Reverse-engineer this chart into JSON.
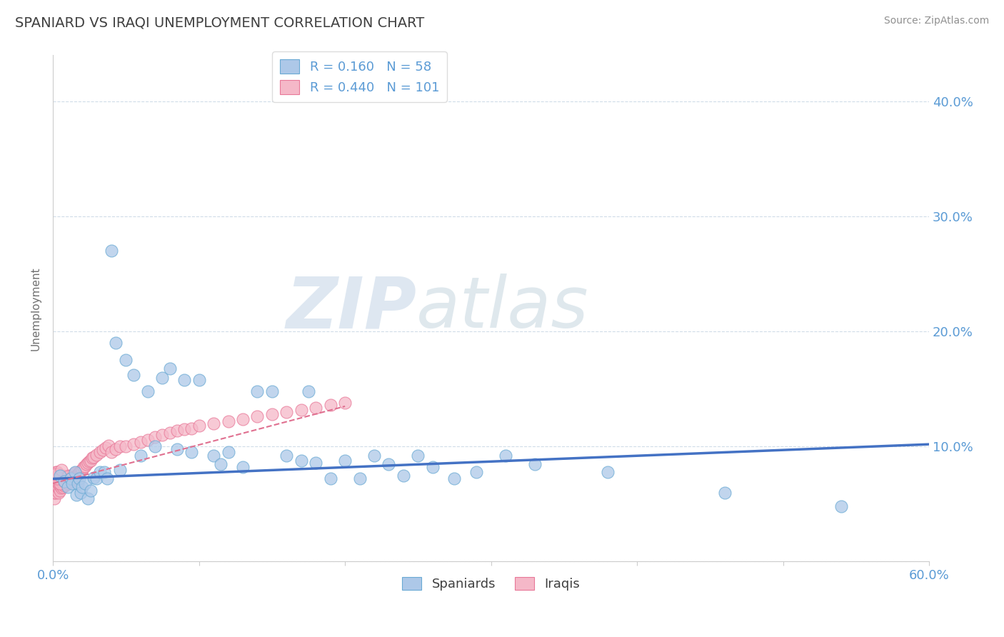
{
  "title": "SPANIARD VS IRAQI UNEMPLOYMENT CORRELATION CHART",
  "source_text": "Source: ZipAtlas.com",
  "ylabel": "Unemployment",
  "watermark_zip": "ZIP",
  "watermark_atlas": "atlas",
  "xlim": [
    0.0,
    0.6
  ],
  "ylim": [
    0.0,
    0.44
  ],
  "xtick_vals": [
    0.0,
    0.1,
    0.2,
    0.3,
    0.4,
    0.5,
    0.6
  ],
  "xtick_labels": [
    "0.0%",
    "",
    "",
    "",
    "",
    "",
    "60.0%"
  ],
  "ytick_vals": [
    0.0,
    0.1,
    0.2,
    0.3,
    0.4
  ],
  "ytick_labels": [
    "",
    "10.0%",
    "20.0%",
    "30.0%",
    "40.0%"
  ],
  "legend_blue_r": "0.160",
  "legend_blue_n": "58",
  "legend_pink_r": "0.440",
  "legend_pink_n": "101",
  "legend_labels": [
    "Spaniards",
    "Iraqis"
  ],
  "blue_scatter_face": "#adc8e8",
  "blue_scatter_edge": "#6aaad4",
  "pink_scatter_face": "#f5b8c8",
  "pink_scatter_edge": "#e87898",
  "blue_line_color": "#4472c4",
  "pink_line_color": "#e07090",
  "title_color": "#404040",
  "axis_label_color": "#5b9bd5",
  "grid_color": "#d0dce8",
  "background_color": "#ffffff",
  "spaniards_x": [
    0.005,
    0.008,
    0.01,
    0.012,
    0.013,
    0.015,
    0.016,
    0.017,
    0.018,
    0.019,
    0.02,
    0.022,
    0.024,
    0.026,
    0.028,
    0.03,
    0.032,
    0.035,
    0.037,
    0.04,
    0.043,
    0.046,
    0.05,
    0.055,
    0.06,
    0.065,
    0.07,
    0.075,
    0.08,
    0.085,
    0.09,
    0.095,
    0.1,
    0.11,
    0.115,
    0.12,
    0.13,
    0.14,
    0.15,
    0.16,
    0.17,
    0.175,
    0.18,
    0.19,
    0.2,
    0.21,
    0.22,
    0.23,
    0.24,
    0.25,
    0.26,
    0.275,
    0.29,
    0.31,
    0.33,
    0.38,
    0.46,
    0.54
  ],
  "spaniards_y": [
    0.075,
    0.07,
    0.065,
    0.072,
    0.068,
    0.078,
    0.058,
    0.068,
    0.072,
    0.06,
    0.065,
    0.068,
    0.055,
    0.062,
    0.073,
    0.072,
    0.078,
    0.078,
    0.072,
    0.27,
    0.19,
    0.08,
    0.175,
    0.162,
    0.092,
    0.148,
    0.1,
    0.16,
    0.168,
    0.098,
    0.158,
    0.095,
    0.158,
    0.092,
    0.085,
    0.095,
    0.082,
    0.148,
    0.148,
    0.092,
    0.088,
    0.148,
    0.086,
    0.072,
    0.088,
    0.072,
    0.092,
    0.085,
    0.075,
    0.092,
    0.082,
    0.072,
    0.078,
    0.092,
    0.085,
    0.078,
    0.06,
    0.048
  ],
  "iraqis_x": [
    0.001,
    0.001,
    0.001,
    0.001,
    0.001,
    0.002,
    0.002,
    0.002,
    0.002,
    0.002,
    0.002,
    0.003,
    0.003,
    0.003,
    0.003,
    0.003,
    0.004,
    0.004,
    0.004,
    0.004,
    0.004,
    0.005,
    0.005,
    0.005,
    0.005,
    0.006,
    0.006,
    0.006,
    0.006,
    0.007,
    0.007,
    0.007,
    0.007,
    0.008,
    0.008,
    0.008,
    0.009,
    0.009,
    0.009,
    0.01,
    0.01,
    0.01,
    0.011,
    0.011,
    0.012,
    0.012,
    0.013,
    0.013,
    0.014,
    0.014,
    0.015,
    0.015,
    0.016,
    0.017,
    0.018,
    0.019,
    0.02,
    0.021,
    0.022,
    0.023,
    0.024,
    0.025,
    0.026,
    0.027,
    0.028,
    0.03,
    0.032,
    0.034,
    0.036,
    0.038,
    0.04,
    0.043,
    0.046,
    0.05,
    0.055,
    0.06,
    0.065,
    0.07,
    0.075,
    0.08,
    0.085,
    0.09,
    0.095,
    0.1,
    0.11,
    0.12,
    0.13,
    0.14,
    0.15,
    0.16,
    0.17,
    0.18,
    0.19,
    0.2,
    0.005,
    0.003,
    0.002,
    0.006,
    0.008,
    0.01,
    0.012
  ],
  "iraqis_y": [
    0.055,
    0.06,
    0.065,
    0.07,
    0.075,
    0.06,
    0.065,
    0.068,
    0.072,
    0.075,
    0.078,
    0.062,
    0.066,
    0.07,
    0.074,
    0.078,
    0.06,
    0.064,
    0.068,
    0.072,
    0.076,
    0.062,
    0.066,
    0.07,
    0.074,
    0.064,
    0.067,
    0.07,
    0.074,
    0.065,
    0.068,
    0.072,
    0.075,
    0.066,
    0.069,
    0.073,
    0.067,
    0.07,
    0.074,
    0.068,
    0.071,
    0.075,
    0.069,
    0.073,
    0.07,
    0.074,
    0.071,
    0.075,
    0.072,
    0.076,
    0.073,
    0.077,
    0.075,
    0.076,
    0.078,
    0.079,
    0.08,
    0.082,
    0.083,
    0.085,
    0.086,
    0.087,
    0.088,
    0.09,
    0.091,
    0.093,
    0.095,
    0.097,
    0.099,
    0.101,
    0.095,
    0.098,
    0.1,
    0.1,
    0.102,
    0.104,
    0.106,
    0.108,
    0.11,
    0.112,
    0.114,
    0.115,
    0.116,
    0.118,
    0.12,
    0.122,
    0.124,
    0.126,
    0.128,
    0.13,
    0.132,
    0.134,
    0.136,
    0.138,
    0.068,
    0.072,
    0.076,
    0.08,
    0.07,
    0.074,
    0.072
  ],
  "blue_trend_x": [
    0.0,
    0.6
  ],
  "blue_trend_y_start": 0.072,
  "blue_trend_y_end": 0.102,
  "pink_trend_x": [
    0.0,
    0.2
  ],
  "pink_trend_y_start": 0.068,
  "pink_trend_y_end": 0.135
}
